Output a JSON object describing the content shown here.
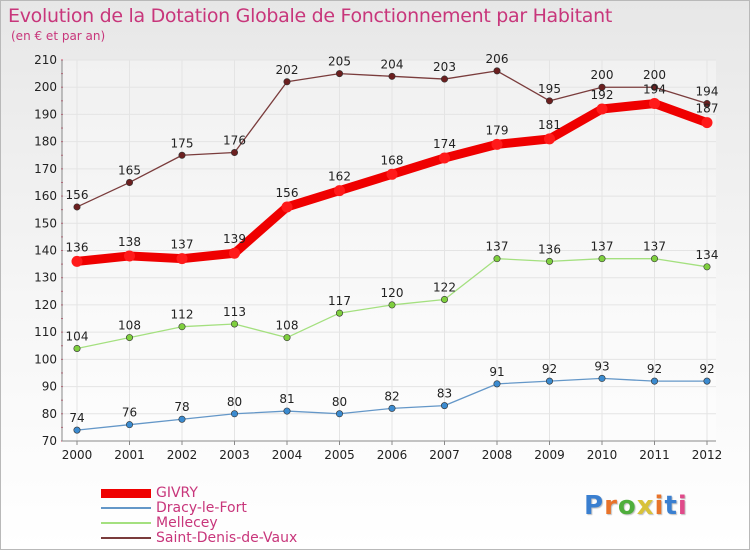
{
  "chart_data": {
    "type": "line",
    "title": "Evolution de la Dotation Globale de Fonctionnement par Habitant",
    "subtitle": "(en € et par an)",
    "xlabel": "",
    "ylabel": "",
    "ylim": [
      70,
      210
    ],
    "yticks": [
      70,
      80,
      90,
      100,
      110,
      120,
      130,
      140,
      150,
      160,
      170,
      180,
      190,
      200,
      210
    ],
    "grid": true,
    "legend_position": "bottom-left",
    "categories": [
      "2000",
      "2001",
      "2002",
      "2003",
      "2004",
      "2005",
      "2006",
      "2007",
      "2008",
      "2009",
      "2010",
      "2011",
      "2012"
    ],
    "series": [
      {
        "name": "GIVRY",
        "color": "#ef0000",
        "marker_color": "#ff1a1a",
        "emphasis": true,
        "values": [
          136,
          138,
          137,
          139,
          156,
          162,
          168,
          174,
          179,
          181,
          192,
          194,
          187
        ]
      },
      {
        "name": "Dracy-le-Fort",
        "color": "#6497c8",
        "marker_color": "#3b8bd0",
        "emphasis": false,
        "values": [
          74,
          76,
          78,
          80,
          81,
          80,
          82,
          83,
          91,
          92,
          93,
          92,
          92
        ]
      },
      {
        "name": "Mellecey",
        "color": "#a4e07f",
        "marker_color": "#7fcf3e",
        "emphasis": false,
        "values": [
          104,
          108,
          112,
          113,
          108,
          117,
          120,
          122,
          137,
          136,
          137,
          137,
          134
        ]
      },
      {
        "name": "Saint-Denis-de-Vaux",
        "color": "#7a3c3c",
        "marker_color": "#6b1f1f",
        "emphasis": false,
        "values": [
          156,
          165,
          175,
          176,
          202,
          205,
          204,
          203,
          206,
          195,
          200,
          200,
          194
        ]
      }
    ]
  },
  "brand": {
    "letters": [
      "P",
      "r",
      "o",
      "x",
      "i",
      "t",
      "i"
    ],
    "colors": [
      "#3a7fd0",
      "#e8732a",
      "#4fae3c",
      "#d8c23a",
      "#e8732a",
      "#3a7fd0",
      "#e04a8a"
    ]
  }
}
